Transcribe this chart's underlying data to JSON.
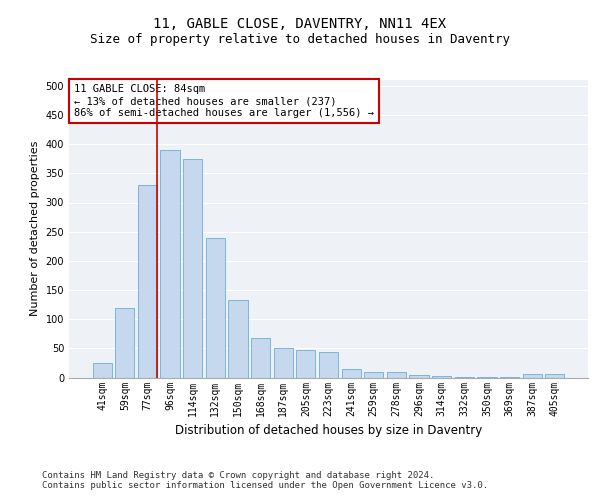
{
  "title1": "11, GABLE CLOSE, DAVENTRY, NN11 4EX",
  "title2": "Size of property relative to detached houses in Daventry",
  "xlabel": "Distribution of detached houses by size in Daventry",
  "ylabel": "Number of detached properties",
  "categories": [
    "41sqm",
    "59sqm",
    "77sqm",
    "96sqm",
    "114sqm",
    "132sqm",
    "150sqm",
    "168sqm",
    "187sqm",
    "205sqm",
    "223sqm",
    "241sqm",
    "259sqm",
    "278sqm",
    "296sqm",
    "314sqm",
    "332sqm",
    "350sqm",
    "369sqm",
    "387sqm",
    "405sqm"
  ],
  "values": [
    25,
    120,
    330,
    390,
    375,
    240,
    133,
    68,
    50,
    48,
    43,
    15,
    10,
    10,
    5,
    2,
    1,
    1,
    1,
    6,
    6
  ],
  "bar_color": "#c5d8ed",
  "bar_edge_color": "#6baed6",
  "vline_color": "#cc0000",
  "vline_pos": 2.42,
  "annotation_text": "11 GABLE CLOSE: 84sqm\n← 13% of detached houses are smaller (237)\n86% of semi-detached houses are larger (1,556) →",
  "annotation_box_color": "#ffffff",
  "annotation_box_edge": "#cc0000",
  "ylim": [
    0,
    510
  ],
  "yticks": [
    0,
    50,
    100,
    150,
    200,
    250,
    300,
    350,
    400,
    450,
    500
  ],
  "background_color": "#eef2f7",
  "footer_text": "Contains HM Land Registry data © Crown copyright and database right 2024.\nContains public sector information licensed under the Open Government Licence v3.0.",
  "title1_fontsize": 10,
  "title2_fontsize": 9,
  "xlabel_fontsize": 8.5,
  "ylabel_fontsize": 8,
  "tick_fontsize": 7,
  "annotation_fontsize": 7.5,
  "footer_fontsize": 6.5
}
